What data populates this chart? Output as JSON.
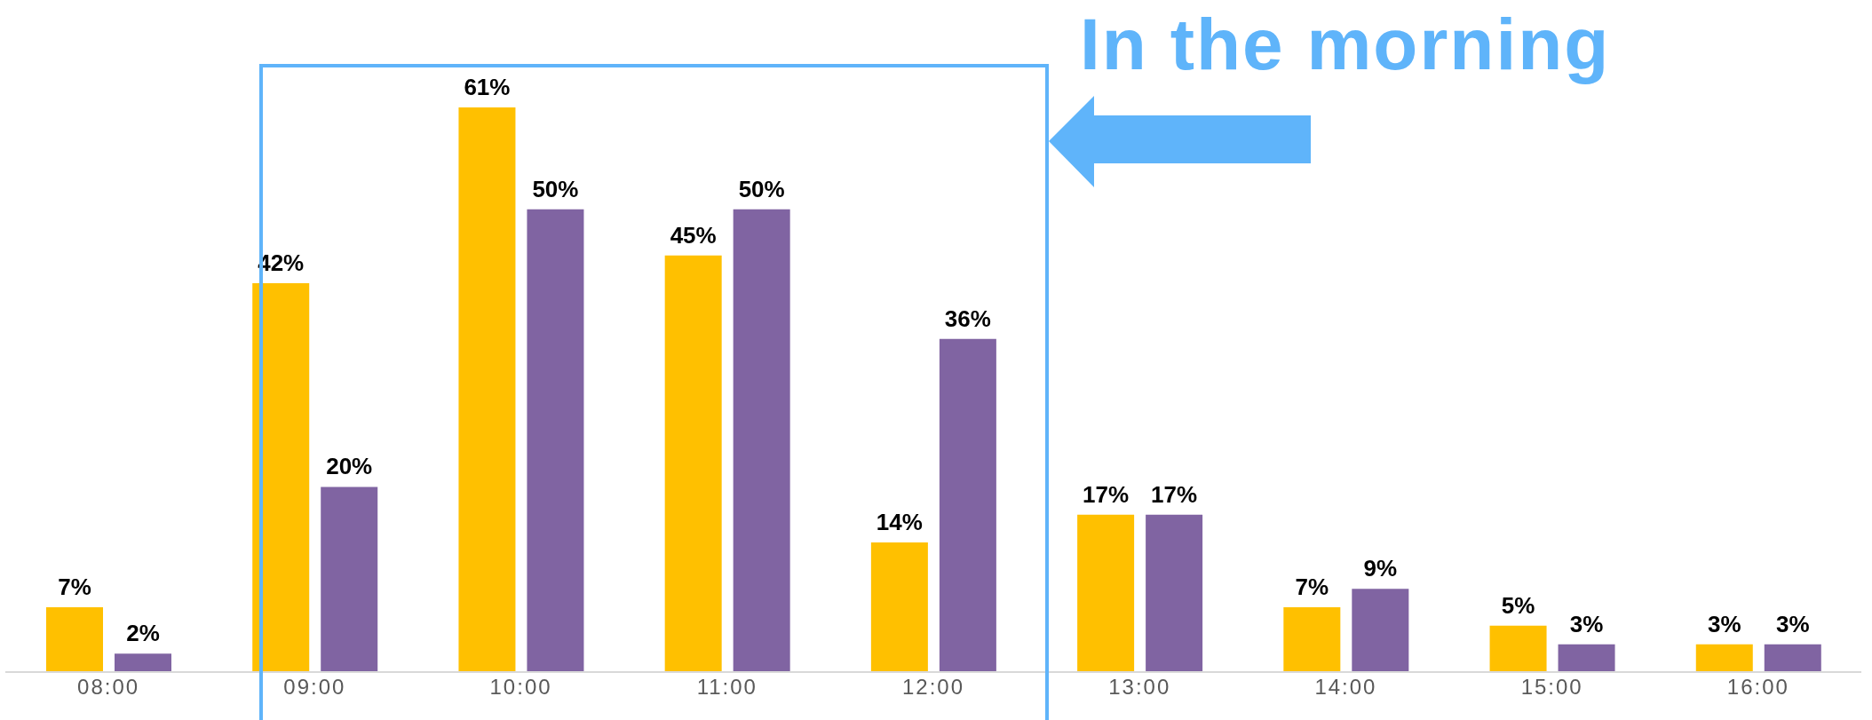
{
  "chart_data": {
    "type": "bar",
    "categories": [
      "08:00",
      "09:00",
      "10:00",
      "11:00",
      "12:00",
      "13:00",
      "14:00",
      "15:00",
      "16:00"
    ],
    "series": [
      {
        "color": "#ffc000",
        "values": [
          7,
          42,
          61,
          45,
          14,
          17,
          7,
          5,
          3
        ],
        "value_labels": [
          "7%",
          "42%",
          "61%",
          "45%",
          "14%",
          "17%",
          "7%",
          "5%",
          "3%"
        ]
      },
      {
        "color": "#8064a2",
        "values": [
          2,
          20,
          50,
          50,
          36,
          17,
          9,
          3,
          3
        ],
        "value_labels": [
          "2%",
          "20%",
          "50%",
          "50%",
          "36%",
          "17%",
          "9%",
          "3%",
          "3%"
        ]
      }
    ],
    "annotations": [
      "In the morning"
    ],
    "tick_labels": "x",
    "grid": false,
    "legend": false
  }
}
